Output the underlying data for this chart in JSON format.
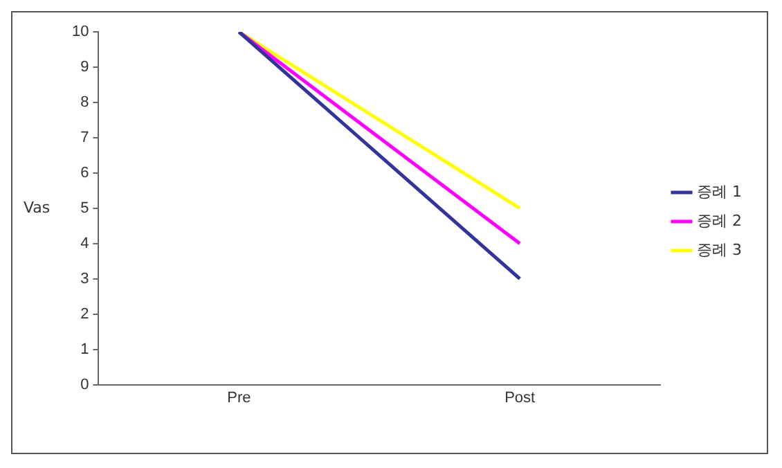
{
  "chart_data": {
    "type": "line",
    "ylabel": "Vas",
    "categories": [
      "Pre",
      "Post"
    ],
    "series": [
      {
        "name": "증례 1",
        "color": "#333399",
        "values": [
          10,
          3
        ]
      },
      {
        "name": "증례 2",
        "color": "#ff00ff",
        "values": [
          10,
          4
        ]
      },
      {
        "name": "증례 3",
        "color": "#ffff00",
        "values": [
          10,
          5
        ]
      }
    ],
    "ylim": [
      0,
      10
    ],
    "yticks": [
      0,
      1,
      2,
      3,
      4,
      5,
      6,
      7,
      8,
      9,
      10
    ],
    "grid": false,
    "legend": "right",
    "marker": "none",
    "line_style": "solid"
  }
}
